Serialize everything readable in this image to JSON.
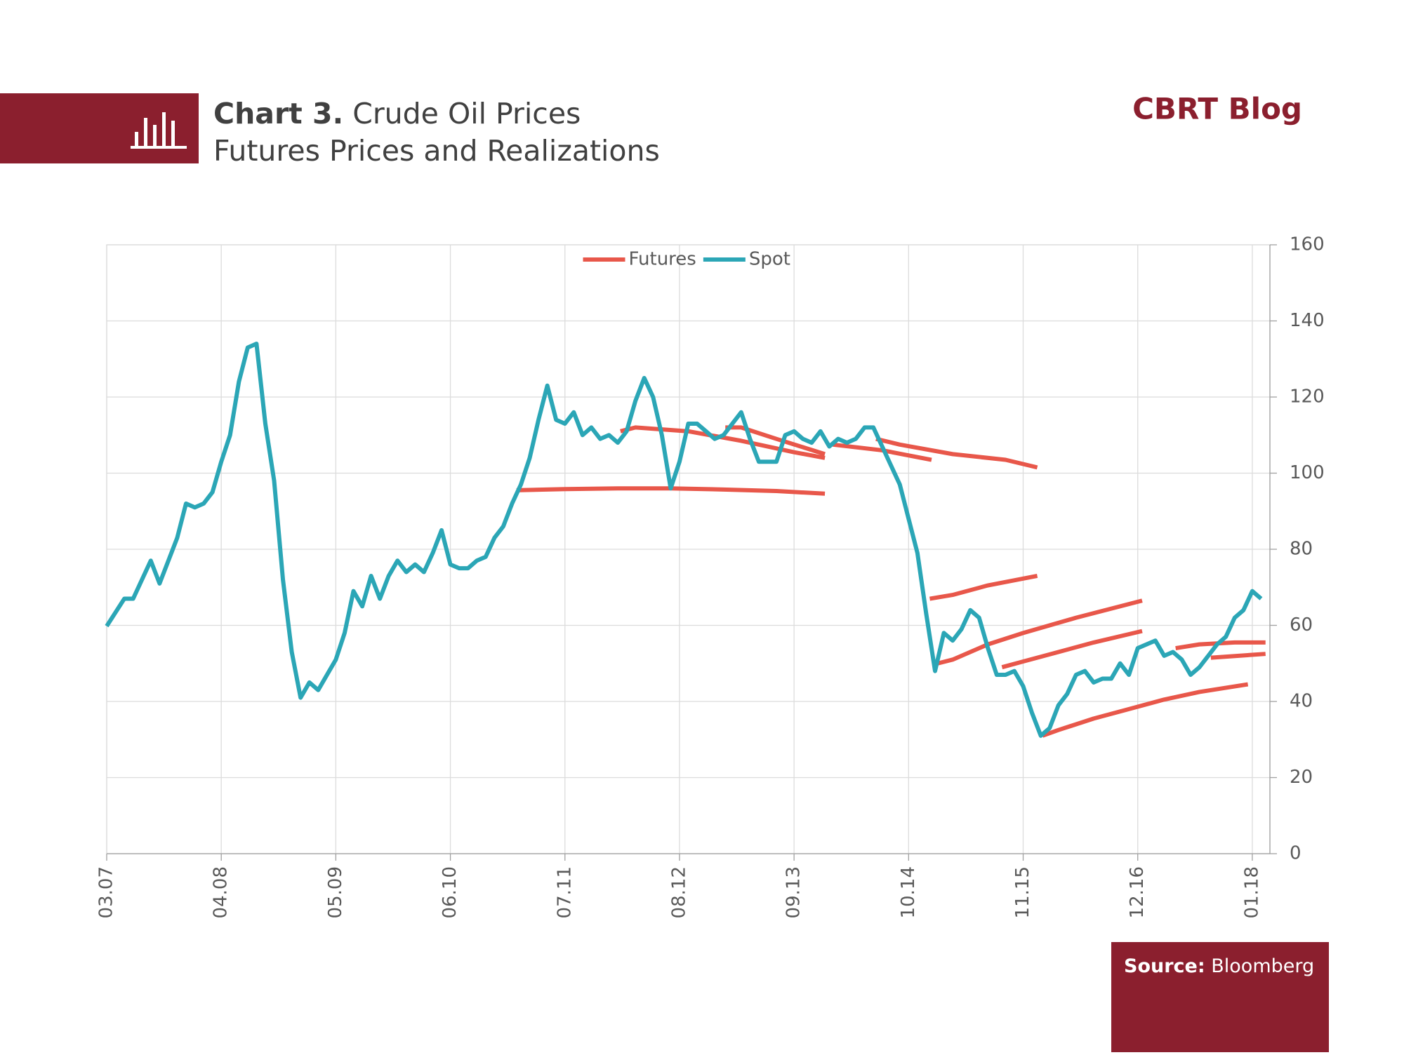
{
  "header": {
    "title_bold": "Chart 3.",
    "title": "Crude Oil Prices",
    "subtitle": "Futures Prices and Realizations",
    "brand": "CBRT Blog"
  },
  "source": {
    "label": "Source:",
    "text": "Bloomberg"
  },
  "chart_data": {
    "type": "line",
    "xlim": [
      0,
      132
    ],
    "ylim": [
      0,
      160
    ],
    "xticks": [
      {
        "value": 0,
        "label": "03.07"
      },
      {
        "value": 13,
        "label": "04.08"
      },
      {
        "value": 26,
        "label": "05.09"
      },
      {
        "value": 39,
        "label": "06.10"
      },
      {
        "value": 52,
        "label": "07.11"
      },
      {
        "value": 65,
        "label": "08.12"
      },
      {
        "value": 78,
        "label": "09.13"
      },
      {
        "value": 91,
        "label": "10.14"
      },
      {
        "value": 104,
        "label": "11.15"
      },
      {
        "value": 117,
        "label": "12.16"
      },
      {
        "value": 130,
        "label": "01.18"
      }
    ],
    "yticks": [
      0,
      20,
      40,
      60,
      80,
      100,
      120,
      140,
      160
    ],
    "grid": true,
    "legend": "top",
    "series": [
      {
        "name": "Futures",
        "color": "#e8574a",
        "x": [
          46.5,
          52,
          58,
          64,
          70,
          76,
          81.5,
          null,
          58.3,
          60,
          66,
          72,
          78,
          81.5,
          null,
          70.2,
          72,
          76,
          81.5,
          null,
          82.4,
          88,
          93.6,
          null,
          87.3,
          90,
          96,
          102,
          105.6,
          null,
          93.4,
          96,
          100,
          105.6,
          null,
          94.3,
          96,
          100,
          104,
          110,
          117.5,
          null,
          101.6,
          104,
          108,
          112,
          117.5,
          null,
          106.2,
          108,
          112,
          116,
          120,
          124,
          129.5,
          null,
          121.3,
          124,
          128,
          131.5,
          null,
          125.3,
          131.5
        ],
        "values": [
          95.5,
          95.8,
          96,
          96,
          95.7,
          95.3,
          94.6,
          null,
          111,
          112,
          111,
          108.5,
          105.5,
          104,
          null,
          112,
          112,
          109,
          105,
          null,
          107.5,
          106,
          103.5,
          null,
          109,
          107.5,
          105,
          103.5,
          101.5,
          null,
          67,
          68,
          70.5,
          73,
          null,
          50,
          51,
          55,
          58,
          62,
          66.5,
          null,
          49,
          50.5,
          53,
          55.5,
          58.5,
          null,
          31,
          32.5,
          35.5,
          38,
          40.5,
          42.5,
          44.5,
          null,
          54,
          55,
          55.5,
          55.5,
          null,
          51.5,
          52.5
        ]
      },
      {
        "name": "Spot",
        "color": "#2ba6b6",
        "x": [
          0,
          2,
          3,
          4,
          5,
          6,
          7,
          8,
          9,
          10,
          11,
          12,
          13,
          14,
          15,
          16,
          17,
          18,
          19,
          20,
          21,
          22,
          23,
          24,
          25,
          26,
          27,
          28,
          29,
          30,
          31,
          32,
          33,
          34,
          35,
          36,
          37,
          38,
          39,
          40,
          41,
          42,
          43,
          44,
          45,
          46,
          47,
          48,
          49,
          50,
          51,
          52,
          53,
          54,
          55,
          56,
          57,
          58,
          59,
          60,
          61,
          62,
          63,
          64,
          65,
          66,
          67,
          68,
          69,
          70,
          71,
          72,
          73,
          74,
          75,
          76,
          77,
          78,
          79,
          80,
          81,
          82,
          83,
          84,
          85,
          86,
          87,
          88,
          89,
          90,
          91,
          92,
          93,
          94,
          95,
          96,
          97,
          98,
          99,
          100,
          101,
          102,
          103,
          104,
          105,
          106,
          107,
          108,
          109,
          110,
          111,
          112,
          113,
          114,
          115,
          116,
          117,
          118,
          119,
          120,
          121,
          122,
          123,
          124,
          125,
          126,
          127,
          128,
          129,
          130,
          131
        ],
        "values": [
          59.8,
          67,
          67,
          72,
          77,
          71,
          77,
          83,
          92,
          91,
          92,
          95,
          103,
          110,
          124,
          133,
          134,
          113,
          98,
          72,
          53,
          41,
          45,
          43,
          47,
          51,
          58,
          69,
          65,
          73,
          67,
          73,
          77,
          74,
          76,
          74,
          79,
          85,
          76,
          75,
          75,
          77,
          78,
          83,
          86,
          92,
          97,
          104,
          114,
          123,
          114,
          113,
          116,
          110,
          112,
          109,
          110,
          108,
          111,
          119,
          125,
          120,
          110,
          96,
          103,
          113,
          113,
          111,
          109,
          110,
          113,
          116,
          109,
          103,
          103,
          103,
          110,
          111,
          109,
          108,
          111,
          107,
          109,
          108,
          109,
          112,
          112,
          107,
          102,
          97,
          88,
          79,
          63,
          48,
          58,
          56,
          59,
          64,
          62,
          54,
          47,
          47,
          48,
          44,
          37,
          31,
          33,
          39,
          42,
          47,
          48,
          45,
          46,
          46,
          50,
          47,
          54,
          55,
          56,
          52,
          53,
          51,
          47,
          49,
          52,
          55,
          57,
          62,
          64,
          69,
          67
        ]
      }
    ]
  }
}
